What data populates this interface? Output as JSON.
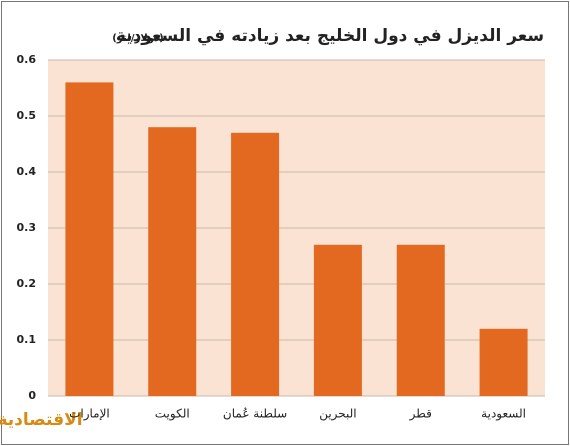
{
  "chart_data": {
    "type": "bar",
    "title": "سعر الديزل في دول الخليج بعد زيادته في السعودية",
    "subtitle": "(دولار/لتر)",
    "categories": [
      "الإمارات",
      "الكويت",
      "سلطنة عُمان",
      "البحرين",
      "قطر",
      "السعودية"
    ],
    "values": [
      0.56,
      0.48,
      0.47,
      0.27,
      0.27,
      0.12
    ],
    "color": "#e2691f",
    "ylim": [
      0,
      0.6
    ],
    "yticks": [
      0,
      0.1,
      0.2,
      0.3,
      0.4,
      0.5,
      0.6
    ],
    "grid": true,
    "source": "الاقتصادية"
  }
}
